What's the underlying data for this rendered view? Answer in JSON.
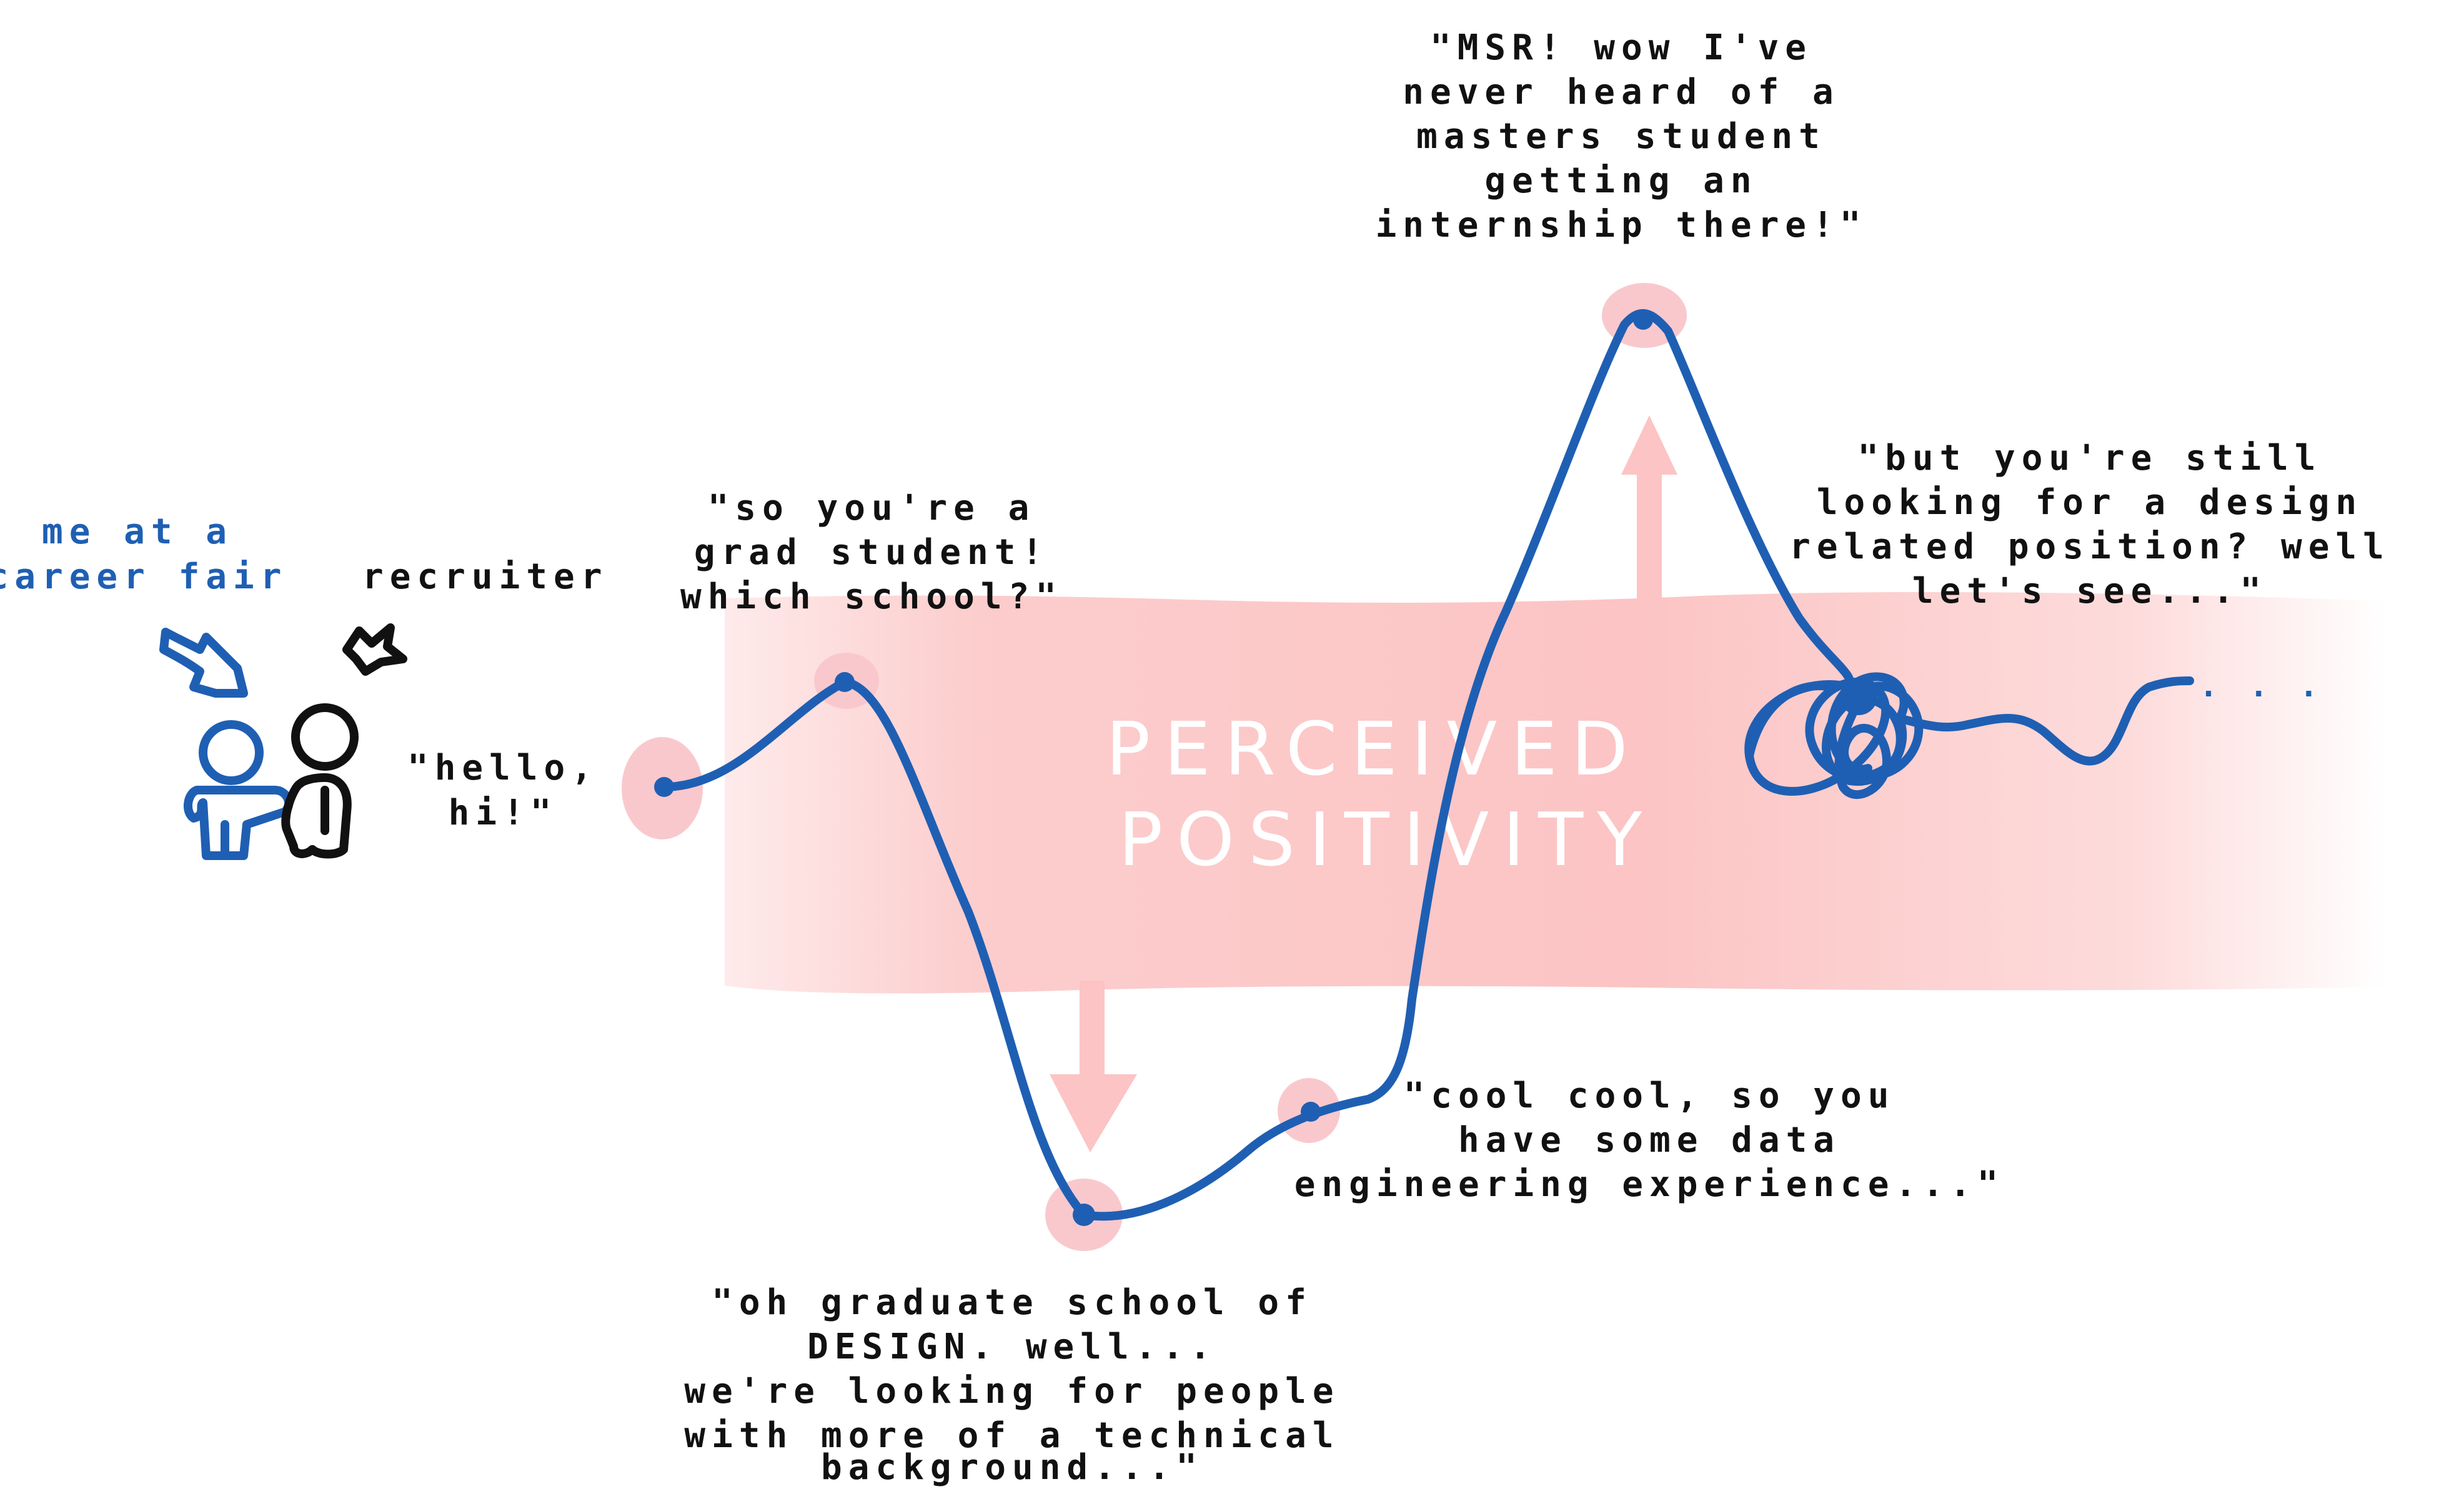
{
  "figure": {
    "band_label": [
      "PERCEIVED",
      "POSITIVITY"
    ],
    "people": {
      "me_label": [
        "me at a",
        "career fair"
      ],
      "recruiter_label": "recruiter"
    },
    "quotes": {
      "hello": [
        "\"hello,",
        "hi!\""
      ],
      "school": [
        "\"so you're a",
        "grad student!",
        "which school?\""
      ],
      "design": [
        "\"oh graduate school of",
        "DESIGN. well...",
        "we're looking for people",
        "with more of a technical",
        "background...\""
      ],
      "data_eng": [
        "\"cool cool, so you",
        "have some data",
        "engineering experience...\""
      ],
      "msr": [
        "\"MSR! wow I've",
        "never heard of a",
        "masters student",
        "getting an",
        "internship there!\""
      ],
      "design_position": [
        "\"but you're still",
        "looking for a design",
        "related position? well",
        "let's see...\""
      ]
    },
    "trailing_dots": ". . .",
    "colors": {
      "curve": "#1f5fb3",
      "band": "#fcc4c4",
      "marker": "#f9c8cd",
      "me": "#1f5fb3",
      "recruiter": "#111111",
      "text": "#111111"
    }
  }
}
